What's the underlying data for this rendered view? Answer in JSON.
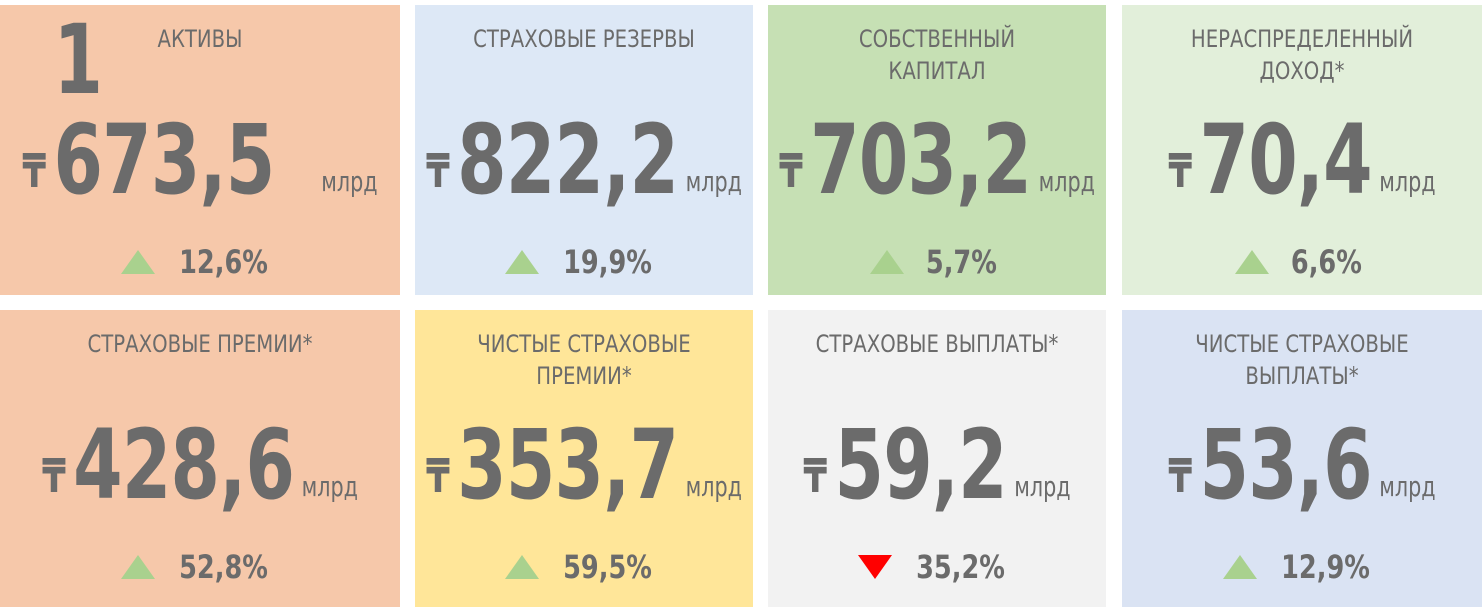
{
  "cards": [
    {
      "title": "АКТИВЫ",
      "currency": "₸",
      "value": "1 673,5",
      "unit": "млрд",
      "direction": "up",
      "change": "12,6%",
      "color": "#f6c8aa"
    },
    {
      "title": "СТРАХОВЫЕ РЕЗЕРВЫ",
      "currency": "₸",
      "value": "822,2",
      "unit": "млрд",
      "direction": "up",
      "change": "19,9%",
      "color": "#dde8f6"
    },
    {
      "title": "СОБСТВЕННЫЙ КАПИТАЛ",
      "currency": "₸",
      "value": "703,2",
      "unit": "млрд",
      "direction": "up",
      "change": "5,7%",
      "color": "#c6e0b4"
    },
    {
      "title": "НЕРАСПРЕДЕЛЕННЫЙ ДОХОД*",
      "currency": "₸",
      "value": "70,4",
      "unit": "млрд",
      "direction": "up",
      "change": "6,6%",
      "color": "#e2efda"
    },
    {
      "title": "СТРАХОВЫЕ ПРЕМИИ*",
      "currency": "₸",
      "value": "428,6",
      "unit": "млрд",
      "direction": "up",
      "change": "52,8%",
      "color": "#f6c8aa"
    },
    {
      "title": "ЧИСТЫЕ СТРАХОВЫЕ ПРЕМИИ*",
      "currency": "₸",
      "value": "353,7",
      "unit": "млрд",
      "direction": "up",
      "change": "59,5%",
      "color": "#ffe699"
    },
    {
      "title": "СТРАХОВЫЕ ВЫПЛАТЫ*",
      "currency": "₸",
      "value": "59,2",
      "unit": "млрд",
      "direction": "down",
      "change": "35,2%",
      "color": "#f2f2f2"
    },
    {
      "title": "ЧИСТЫЕ СТРАХОВЫЕ ВЫПЛАТЫ*",
      "currency": "₸",
      "value": "53,6",
      "unit": "млрд",
      "direction": "up",
      "change": "12,9%",
      "color": "#dae3f3"
    }
  ]
}
